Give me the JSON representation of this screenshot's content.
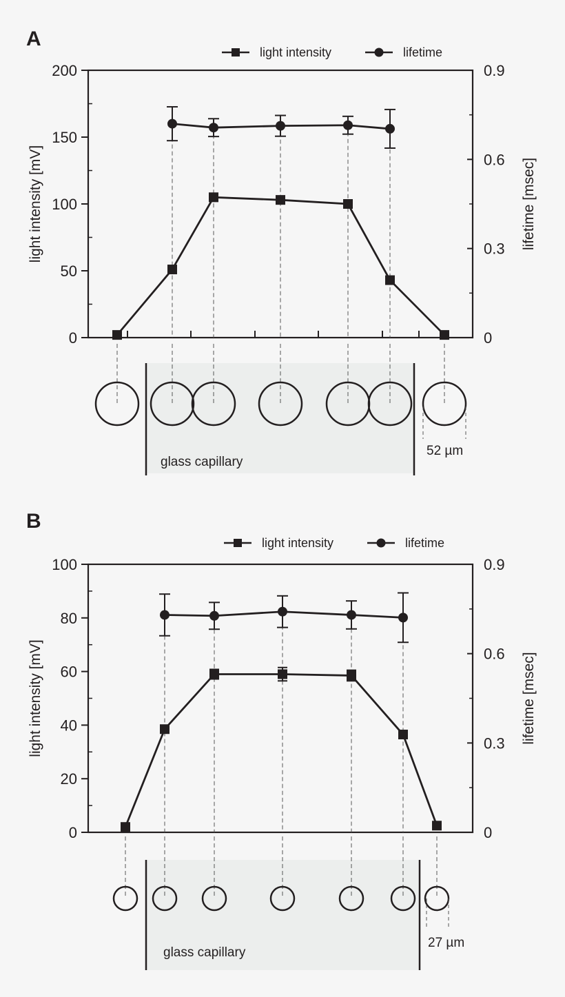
{
  "chart_data": [
    {
      "panel_label": "A",
      "type": "line",
      "legend": {
        "position": "top-right",
        "items": [
          "light intensity",
          "lifetime"
        ]
      },
      "ylabel": "light intensity [mV]",
      "ylabel_right": "lifetime [msec]",
      "ylim": [
        0,
        200
      ],
      "ylim_right": [
        0,
        0.9
      ],
      "yticks": [
        "0",
        "50",
        "100",
        "150",
        "200"
      ],
      "yticks_right": [
        "0",
        "0.3",
        "0.6",
        "0.9"
      ],
      "grid": false,
      "series": [
        {
          "name": "light intensity",
          "marker": "square",
          "axis": "left",
          "points": [
            {
              "x": 0,
              "y": 2,
              "err": 0
            },
            {
              "x": 1,
              "y": 51,
              "err": 2
            },
            {
              "x": 2,
              "y": 105,
              "err": 3
            },
            {
              "x": 3,
              "y": 103,
              "err": 3
            },
            {
              "x": 4,
              "y": 100,
              "err": 2.5
            },
            {
              "x": 5,
              "y": 43,
              "err": 2
            },
            {
              "x": 6,
              "y": 2,
              "err": 0
            }
          ]
        },
        {
          "name": "lifetime",
          "marker": "circle",
          "axis": "right",
          "points": [
            {
              "x": 1,
              "y": 0.72,
              "err": 0.057
            },
            {
              "x": 2,
              "y": 0.707,
              "err": 0.03
            },
            {
              "x": 3,
              "y": 0.713,
              "err": 0.035
            },
            {
              "x": 4,
              "y": 0.715,
              "err": 0.03
            },
            {
              "x": 5,
              "y": 0.703,
              "err": 0.065
            }
          ]
        }
      ],
      "capillary_label": "glass capillary",
      "scale_label": "52 µm"
    },
    {
      "panel_label": "B",
      "type": "line",
      "legend": {
        "position": "top-right",
        "items": [
          "light intensity",
          "lifetime"
        ]
      },
      "ylabel": "light intensity [mV]",
      "ylabel_right": "lifetime [msec]",
      "ylim": [
        0,
        100
      ],
      "ylim_right": [
        0,
        0.9
      ],
      "yticks": [
        "0",
        "20",
        "40",
        "60",
        "80",
        "100"
      ],
      "yticks_right": [
        "0",
        "0.3",
        "0.6",
        "0.9"
      ],
      "grid": false,
      "series": [
        {
          "name": "light intensity",
          "marker": "square",
          "axis": "left",
          "points": [
            {
              "x": 0,
              "y": 2,
              "err": 0
            },
            {
              "x": 1,
              "y": 38.5,
              "err": 1.2
            },
            {
              "x": 2,
              "y": 59,
              "err": 1.8
            },
            {
              "x": 3,
              "y": 59,
              "err": 2.5
            },
            {
              "x": 4,
              "y": 58.5,
              "err": 2
            },
            {
              "x": 5,
              "y": 36.5,
              "err": 1.2
            },
            {
              "x": 6,
              "y": 2.5,
              "err": 0
            }
          ]
        },
        {
          "name": "lifetime",
          "marker": "circle",
          "axis": "right",
          "points": [
            {
              "x": 1,
              "y": 0.73,
              "err": 0.07
            },
            {
              "x": 2,
              "y": 0.727,
              "err": 0.045
            },
            {
              "x": 3,
              "y": 0.741,
              "err": 0.053
            },
            {
              "x": 4,
              "y": 0.73,
              "err": 0.047
            },
            {
              "x": 5,
              "y": 0.721,
              "err": 0.083
            }
          ]
        }
      ],
      "capillary_label": "glass capillary",
      "scale_label": "27 µm"
    }
  ]
}
